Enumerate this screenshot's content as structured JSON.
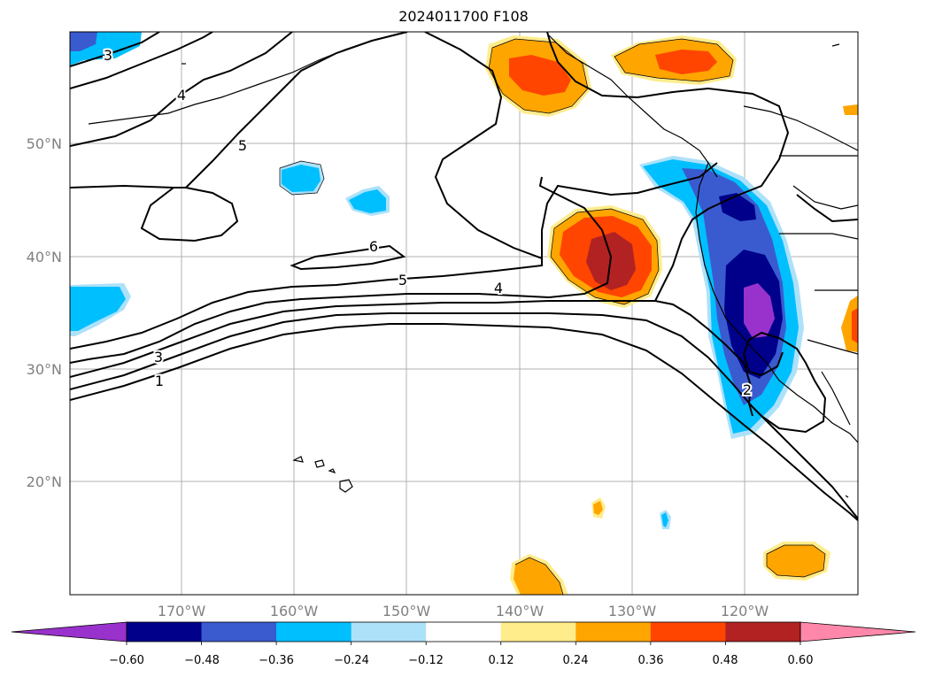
{
  "title": "2024011700 F108",
  "map": {
    "lat_labels": [
      "50°N",
      "40°N",
      "30°N",
      "20°N"
    ],
    "lon_labels": [
      "170°W",
      "160°W",
      "150°W",
      "140°W",
      "130°W",
      "120°W"
    ],
    "contour_labels": [
      "3",
      "4",
      "5",
      "6",
      "5",
      "4",
      "3",
      "1",
      "2"
    ]
  },
  "colorbar": {
    "tick_labels": [
      "−0.60",
      "−0.48",
      "−0.36",
      "−0.24",
      "−0.12",
      "0.12",
      "0.24",
      "0.36",
      "0.48",
      "0.60"
    ],
    "colors": [
      "#9932CC",
      "#00008B",
      "#3A5BCF",
      "#00BFFF",
      "#ADE1FA",
      "#FFFFFF",
      "#FFEC8B",
      "#FFA500",
      "#FF4500",
      "#B22222",
      "#FF88AA"
    ]
  }
}
